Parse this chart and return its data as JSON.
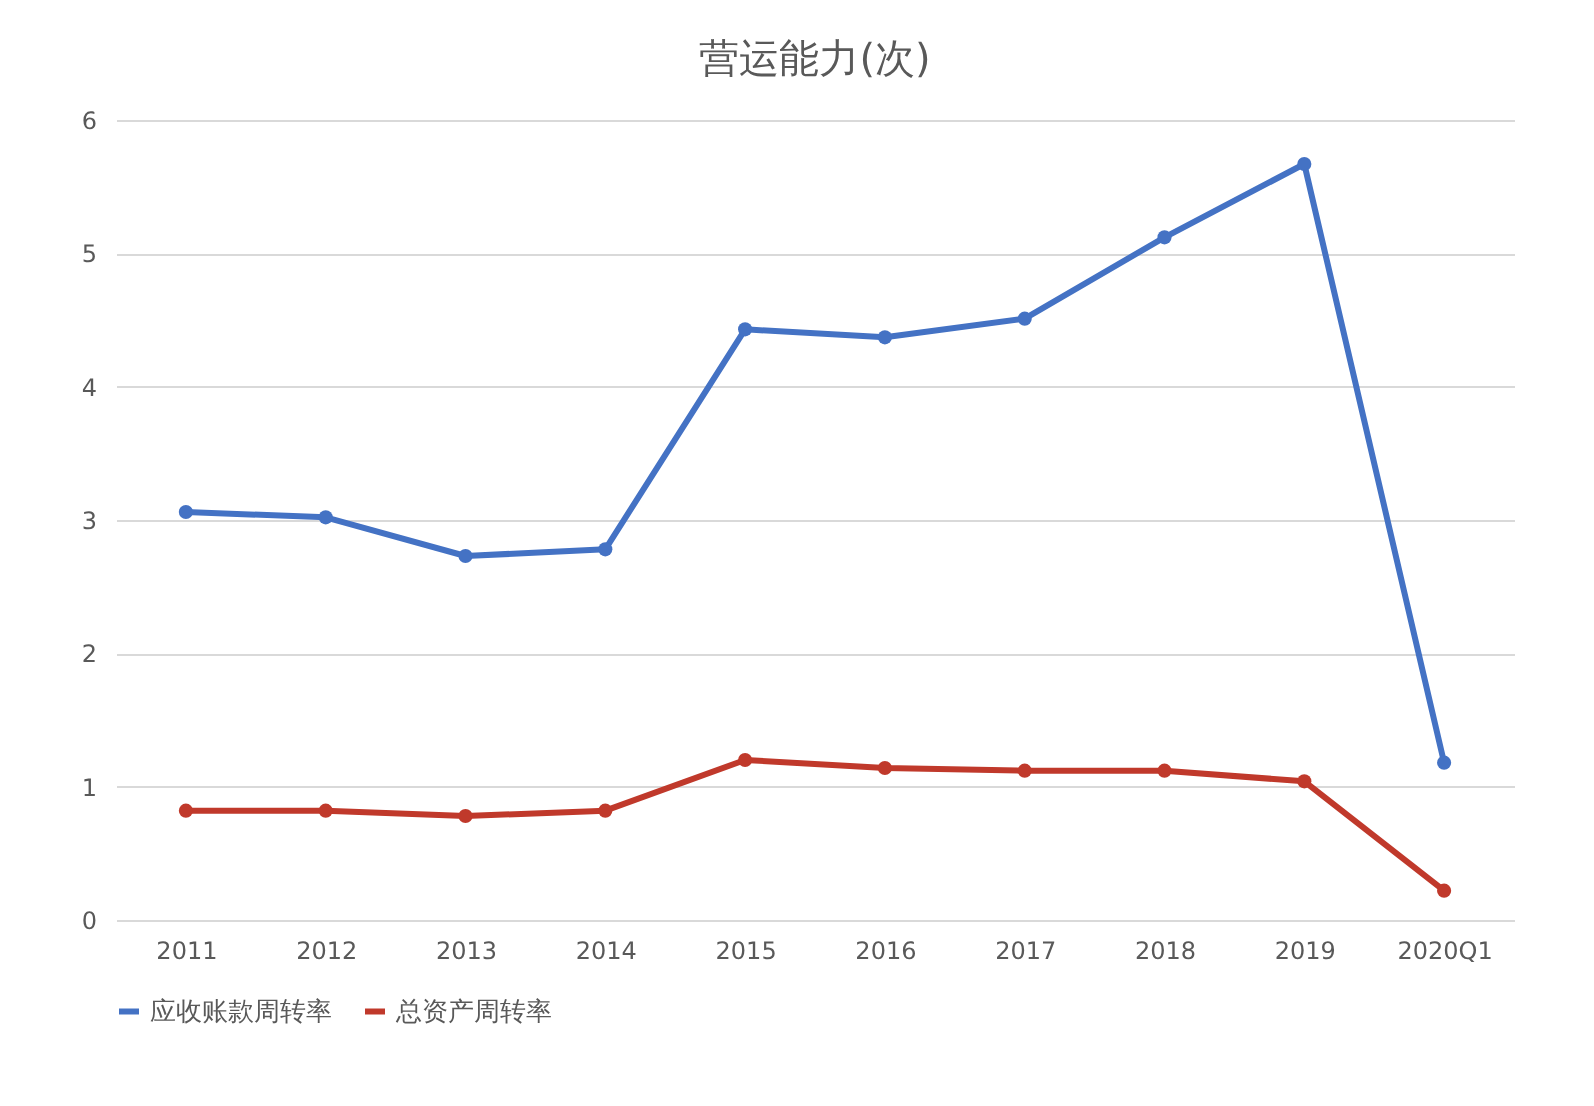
{
  "chart_data": {
    "type": "line",
    "title": "营运能力(次)",
    "categories": [
      "2011",
      "2012",
      "2013",
      "2014",
      "2015",
      "2016",
      "2017",
      "2018",
      "2019",
      "2020Q1"
    ],
    "series": [
      {
        "name": "应收账款周转率",
        "color": "#4472c4",
        "values": [
          3.06,
          3.02,
          2.73,
          2.78,
          4.43,
          4.37,
          4.51,
          5.12,
          5.67,
          1.18
        ]
      },
      {
        "name": "总资产周转率",
        "color": "#c0392b",
        "values": [
          0.82,
          0.82,
          0.78,
          0.82,
          1.2,
          1.14,
          1.12,
          1.12,
          1.04,
          0.22
        ]
      }
    ],
    "ylim": [
      0,
      6
    ],
    "yticks": [
      0,
      1,
      2,
      3,
      4,
      5,
      6
    ],
    "grid": "y",
    "legend": "bottom",
    "marker": "circle",
    "line_style": "solid"
  }
}
